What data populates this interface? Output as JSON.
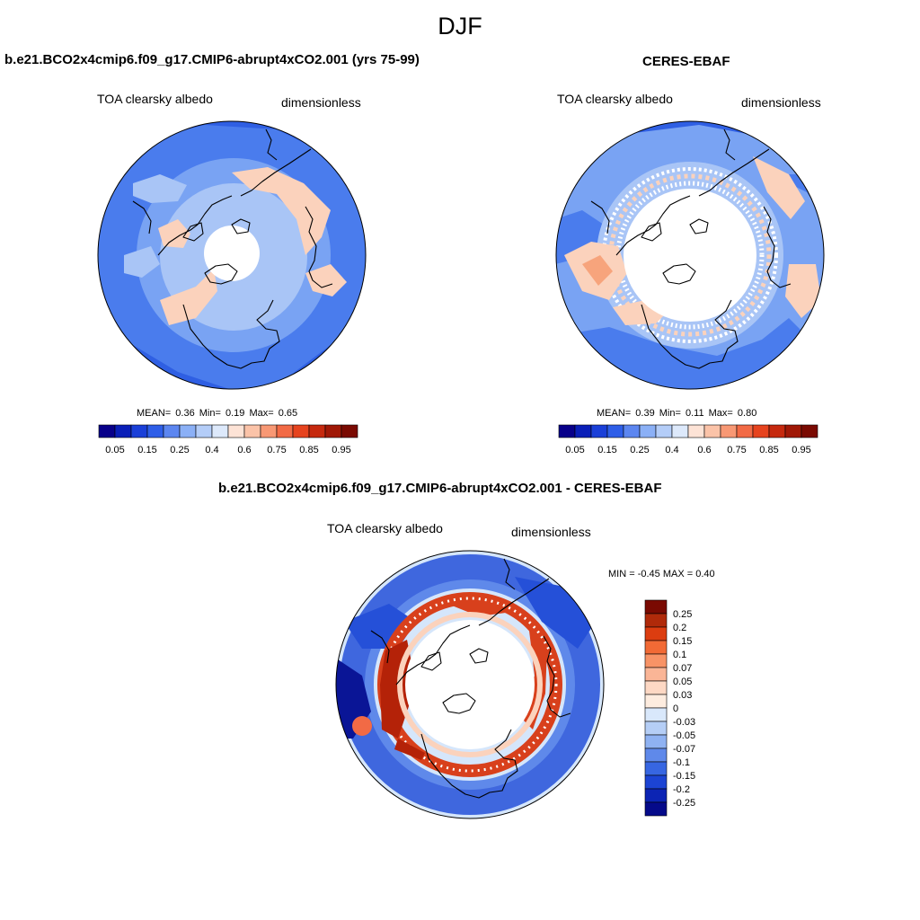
{
  "title": "DJF",
  "panels": {
    "model": {
      "title": "b.e21.BCO2x4cmip6.f09_g17.CMIP6-abrupt4xCO2.001 (yrs 75-99)",
      "left_label": "TOA clearsky albedo",
      "right_label": "dimensionless",
      "stats": {
        "mean_label": "MEAN=",
        "mean": "0.36",
        "min_label": "Min=",
        "min": "0.19",
        "max_label": "Max=",
        "max": "0.65"
      }
    },
    "obs": {
      "title": "CERES-EBAF",
      "left_label": "TOA clearsky albedo",
      "right_label": "dimensionless",
      "stats": {
        "mean_label": "MEAN=",
        "mean": "0.39",
        "min_label": "Min=",
        "min": "0.11",
        "max_label": "Max=",
        "max": "0.80"
      }
    },
    "diff": {
      "title": "b.e21.BCO2x4cmip6.f09_g17.CMIP6-abrupt4xCO2.001 - CERES-EBAF",
      "left_label": "TOA clearsky albedo",
      "right_label": "dimensionless",
      "minmax": "MIN =  -0.45 MAX =   0.40"
    }
  },
  "colorbar_abs": {
    "colors": [
      "#08008a",
      "#0a1fb8",
      "#1a3fd8",
      "#2e5ee8",
      "#5c86f0",
      "#8bb0f6",
      "#b4cdf8",
      "#dde9fb",
      "#fde3d6",
      "#fbc3a8",
      "#f89874",
      "#f26a45",
      "#e6431e",
      "#c6290e",
      "#a01806",
      "#7a0a02"
    ],
    "labels": [
      "0.05",
      "0.15",
      "0.25",
      "0.4",
      "0.6",
      "0.75",
      "0.85",
      "0.95"
    ]
  },
  "colorbar_diff": {
    "colors": [
      "#7a0a02",
      "#b02a0a",
      "#dc3d10",
      "#f26a35",
      "#f89366",
      "#fab596",
      "#fdd8c4",
      "#fdecdf",
      "#d9e8fb",
      "#b5cef6",
      "#8fb2f2",
      "#5f89ea",
      "#3766e2",
      "#1c44d4",
      "#0c24b4",
      "#050a8a"
    ],
    "labels": [
      "0.25",
      "0.2",
      "0.15",
      "0.1",
      "0.07",
      "0.05",
      "0.03",
      "0",
      "-0.03",
      "-0.05",
      "-0.07",
      "-0.1",
      "-0.15",
      "-0.2",
      "-0.25"
    ]
  },
  "map_colors": {
    "deep_blue": "#2f5fe3",
    "mid_blue": "#4a7ced",
    "light_blue": "#79a3f3",
    "pale_blue": "#a9c5f6",
    "very_pale": "#d9e7fb",
    "peach": "#fbd2bc",
    "salmon": "#f7a47c",
    "diff_bg": "#d5e6fb",
    "diff_red": "#d8401c",
    "diff_dark_red": "#b42208",
    "diff_navy": "#0a1596",
    "diff_blue": "#2550d8"
  }
}
